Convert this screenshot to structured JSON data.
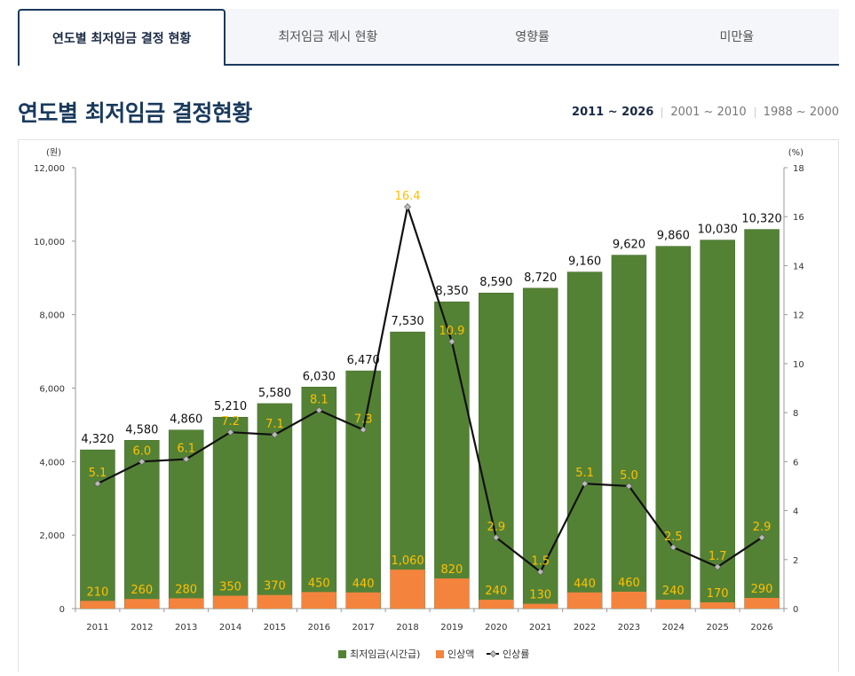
{
  "tabs": [
    {
      "label": "연도별 최저임금 결정 현황",
      "active": true
    },
    {
      "label": "최저임금 제시 현황",
      "active": false
    },
    {
      "label": "영향률",
      "active": false
    },
    {
      "label": "미만율",
      "active": false
    }
  ],
  "page_title": "연도별 최저임금 결정현황",
  "year_ranges": [
    {
      "label": "2011 ~ 2026",
      "active": true
    },
    {
      "label": "2001 ~ 2010",
      "active": false
    },
    {
      "label": "1988 ~ 2000",
      "active": false
    }
  ],
  "colors": {
    "wage": "#548235",
    "increase": "#f4843d",
    "rate_line": "#111111",
    "rate_label": "#ffc000"
  },
  "chart_data": {
    "type": "bar",
    "categories": [
      "2011",
      "2012",
      "2013",
      "2014",
      "2015",
      "2016",
      "2017",
      "2018",
      "2019",
      "2020",
      "2021",
      "2022",
      "2023",
      "2024",
      "2025",
      "2026"
    ],
    "series": [
      {
        "name": "최저임금(시간급)",
        "type": "bar",
        "axis": "left",
        "values": [
          4320,
          4580,
          4860,
          5210,
          5580,
          6030,
          6470,
          7530,
          8350,
          8590,
          8720,
          9160,
          9620,
          9860,
          10030,
          10320
        ],
        "labels": [
          "4,320",
          "4,580",
          "4,860",
          "5,210",
          "5,580",
          "6,030",
          "6,470",
          "7,530",
          "8,350",
          "8,590",
          "8,720",
          "9,160",
          "9,620",
          "9,860",
          "10,030",
          "10,320"
        ]
      },
      {
        "name": "인상액",
        "type": "bar",
        "axis": "left",
        "values": [
          210,
          260,
          280,
          350,
          370,
          450,
          440,
          1060,
          820,
          240,
          130,
          440,
          460,
          240,
          170,
          290
        ],
        "labels": [
          "210",
          "260",
          "280",
          "350",
          "370",
          "450",
          "440",
          "1,060",
          "820",
          "240",
          "130",
          "440",
          "460",
          "240",
          "170",
          "290"
        ]
      },
      {
        "name": "인상률",
        "type": "line",
        "axis": "right",
        "values": [
          5.1,
          6.0,
          6.1,
          7.2,
          7.1,
          8.1,
          7.3,
          16.4,
          10.9,
          2.9,
          1.5,
          5.1,
          5.0,
          2.5,
          1.7,
          2.9
        ],
        "labels": [
          "5.1",
          "6.0",
          "6.1",
          "7.2",
          "7.1",
          "8.1",
          "7.3",
          "16.4",
          "10.9",
          "2.9",
          "1.5",
          "5.1",
          "5.0",
          "2.5",
          "1.7",
          "2.9"
        ]
      }
    ],
    "ylabel_left": "(원)",
    "ylabel_right": "(%)",
    "ylim_left": [
      0,
      12000
    ],
    "ylim_right": [
      0,
      18
    ],
    "yticks_left": [
      "0",
      "2,000",
      "4,000",
      "6,000",
      "8,000",
      "10,000",
      "12,000"
    ],
    "yticks_right": [
      "0",
      "2",
      "4",
      "6",
      "8",
      "10",
      "12",
      "14",
      "16",
      "18"
    ],
    "legend": {
      "position": "bottom",
      "items": [
        "최저임금(시간급)",
        "인상액",
        "인상률"
      ]
    },
    "grid": false
  }
}
